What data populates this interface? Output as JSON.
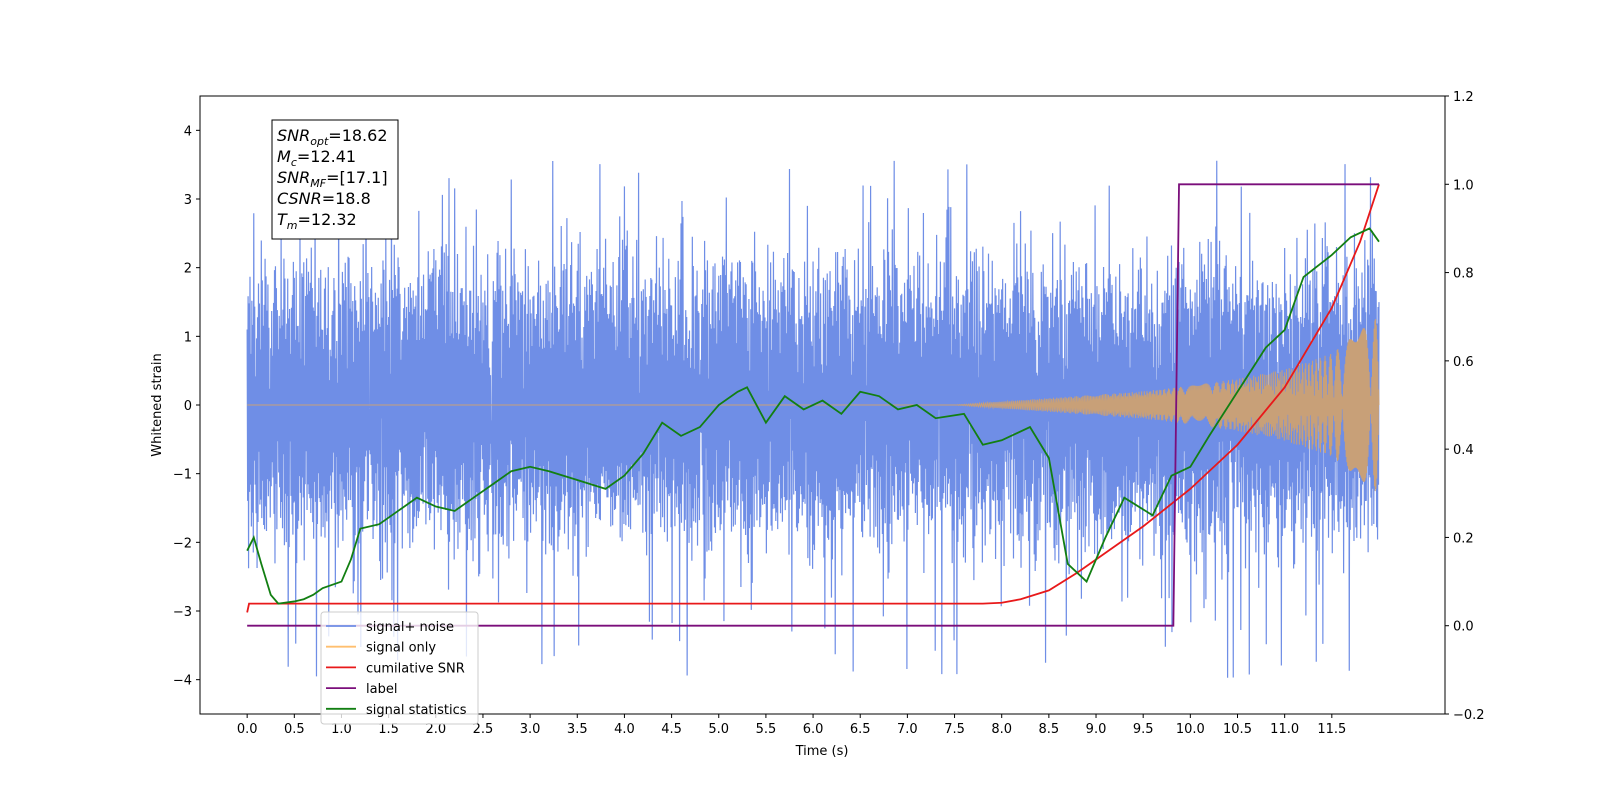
{
  "chart_data": {
    "type": "line",
    "xlabel": "Time (s)",
    "ylabel": "Whitened strain",
    "xlim": [
      -0.5,
      12.7
    ],
    "ylim": [
      -4.5,
      4.5
    ],
    "y2lim": [
      -0.2,
      1.2
    ],
    "x_ticks": [
      "0.0",
      "0.5",
      "1.0",
      "1.5",
      "2.0",
      "2.5",
      "3.0",
      "3.5",
      "4.0",
      "4.5",
      "5.0",
      "5.5",
      "6.0",
      "6.5",
      "7.0",
      "7.5",
      "8.0",
      "8.5",
      "9.0",
      "9.5",
      "10.0",
      "10.5",
      "11.0",
      "11.5"
    ],
    "y_ticks": [
      "4",
      "3",
      "2",
      "1",
      "0",
      "−1",
      "−2",
      "−3",
      "−4"
    ],
    "y2_ticks": [
      "1.2",
      "1.0",
      "0.8",
      "0.6",
      "0.4",
      "0.2",
      "0.0",
      "−0.2"
    ],
    "legend_position": "lower-left",
    "info_box": {
      "lines": [
        {
          "main": "SNR",
          "sub": "opt",
          "rest": "=18.62"
        },
        {
          "main": "M",
          "sub": "c",
          "rest": "=12.41"
        },
        {
          "main": "SNR",
          "sub": "MF",
          "rest": "=[17.1]"
        },
        {
          "main": "CSNR",
          "sub": "",
          "rest": "=18.8"
        },
        {
          "main": "T",
          "sub": "m",
          "rest": "=12.32"
        }
      ]
    },
    "series": [
      {
        "name": "signal+ noise",
        "axis": "left",
        "color": "#6f8ee6",
        "kind": "noise_band",
        "x_range": [
          0.0,
          12.0
        ],
        "typical_range": [
          -1.5,
          1.5
        ],
        "extreme_range": [
          -4.0,
          3.6
        ]
      },
      {
        "name": "signal only",
        "axis": "left",
        "color": "#c8a078",
        "kind": "chirp_envelope",
        "x": [
          0.0,
          7.5,
          8.0,
          8.5,
          9.0,
          9.5,
          10.0,
          10.5,
          11.0,
          11.5,
          12.0
        ],
        "amplitude": [
          0.0,
          0.0,
          0.05,
          0.1,
          0.15,
          0.2,
          0.28,
          0.38,
          0.52,
          0.75,
          1.3
        ]
      },
      {
        "name": "cumilative SNR",
        "axis": "right",
        "color": "#e8191a",
        "x": [
          0.0,
          0.02,
          7.8,
          8.0,
          8.2,
          8.5,
          8.8,
          9.0,
          9.5,
          10.0,
          10.5,
          11.0,
          11.5,
          11.8,
          12.0
        ],
        "values": [
          0.03,
          0.05,
          0.05,
          0.052,
          0.06,
          0.08,
          0.12,
          0.15,
          0.225,
          0.31,
          0.41,
          0.54,
          0.72,
          0.87,
          1.0
        ]
      },
      {
        "name": "label",
        "axis": "right",
        "color": "#7b0e7b",
        "x": [
          0.0,
          9.82,
          9.88,
          12.0
        ],
        "values": [
          0.0,
          0.0,
          1.0,
          1.0
        ]
      },
      {
        "name": "signal statistics",
        "axis": "right",
        "color": "#127f12",
        "x": [
          0.0,
          0.07,
          0.15,
          0.25,
          0.33,
          0.5,
          0.6,
          0.7,
          0.8,
          1.0,
          1.1,
          1.2,
          1.4,
          1.6,
          1.8,
          2.0,
          2.2,
          2.4,
          2.6,
          2.8,
          3.0,
          3.2,
          3.5,
          3.8,
          4.0,
          4.2,
          4.4,
          4.6,
          4.8,
          5.0,
          5.2,
          5.3,
          5.5,
          5.7,
          5.9,
          6.1,
          6.3,
          6.5,
          6.7,
          6.9,
          7.1,
          7.3,
          7.6,
          7.8,
          8.0,
          8.3,
          8.5,
          8.7,
          8.9,
          9.1,
          9.3,
          9.6,
          9.8,
          10.0,
          10.2,
          10.5,
          10.8,
          11.0,
          11.2,
          11.5,
          11.7,
          11.9,
          12.0
        ],
        "values": [
          0.17,
          0.2,
          0.14,
          0.07,
          0.05,
          0.055,
          0.06,
          0.07,
          0.085,
          0.1,
          0.15,
          0.22,
          0.23,
          0.26,
          0.29,
          0.27,
          0.26,
          0.29,
          0.32,
          0.35,
          0.36,
          0.35,
          0.33,
          0.31,
          0.34,
          0.39,
          0.46,
          0.43,
          0.45,
          0.5,
          0.53,
          0.54,
          0.46,
          0.52,
          0.49,
          0.51,
          0.48,
          0.53,
          0.52,
          0.49,
          0.5,
          0.47,
          0.48,
          0.41,
          0.42,
          0.45,
          0.38,
          0.14,
          0.1,
          0.2,
          0.29,
          0.25,
          0.34,
          0.36,
          0.43,
          0.53,
          0.63,
          0.67,
          0.79,
          0.84,
          0.88,
          0.9,
          0.87
        ]
      }
    ]
  }
}
